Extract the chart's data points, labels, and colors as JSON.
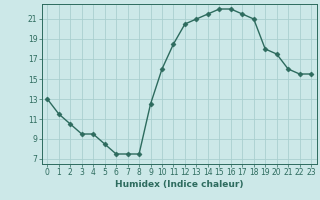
{
  "x": [
    0,
    1,
    2,
    3,
    4,
    5,
    6,
    7,
    8,
    9,
    10,
    11,
    12,
    13,
    14,
    15,
    16,
    17,
    18,
    19,
    20,
    21,
    22,
    23
  ],
  "y": [
    13,
    11.5,
    10.5,
    9.5,
    9.5,
    8.5,
    7.5,
    7.5,
    7.5,
    12.5,
    16,
    18.5,
    20.5,
    21,
    21.5,
    22,
    22,
    21.5,
    21,
    18,
    17.5,
    16,
    15.5,
    15.5
  ],
  "xlabel": "Humidex (Indice chaleur)",
  "xlim": [
    -0.5,
    23.5
  ],
  "ylim": [
    6.5,
    22.5
  ],
  "yticks": [
    7,
    9,
    11,
    13,
    15,
    17,
    19,
    21
  ],
  "xticks": [
    0,
    1,
    2,
    3,
    4,
    5,
    6,
    7,
    8,
    9,
    10,
    11,
    12,
    13,
    14,
    15,
    16,
    17,
    18,
    19,
    20,
    21,
    22,
    23
  ],
  "line_color": "#2d6b5e",
  "marker_color": "#2d6b5e",
  "bg_color": "#cce8e8",
  "grid_color": "#aacfcf",
  "spine_color": "#2d6b5e",
  "tick_color": "#2d6b5e",
  "label_color": "#2d6b5e"
}
